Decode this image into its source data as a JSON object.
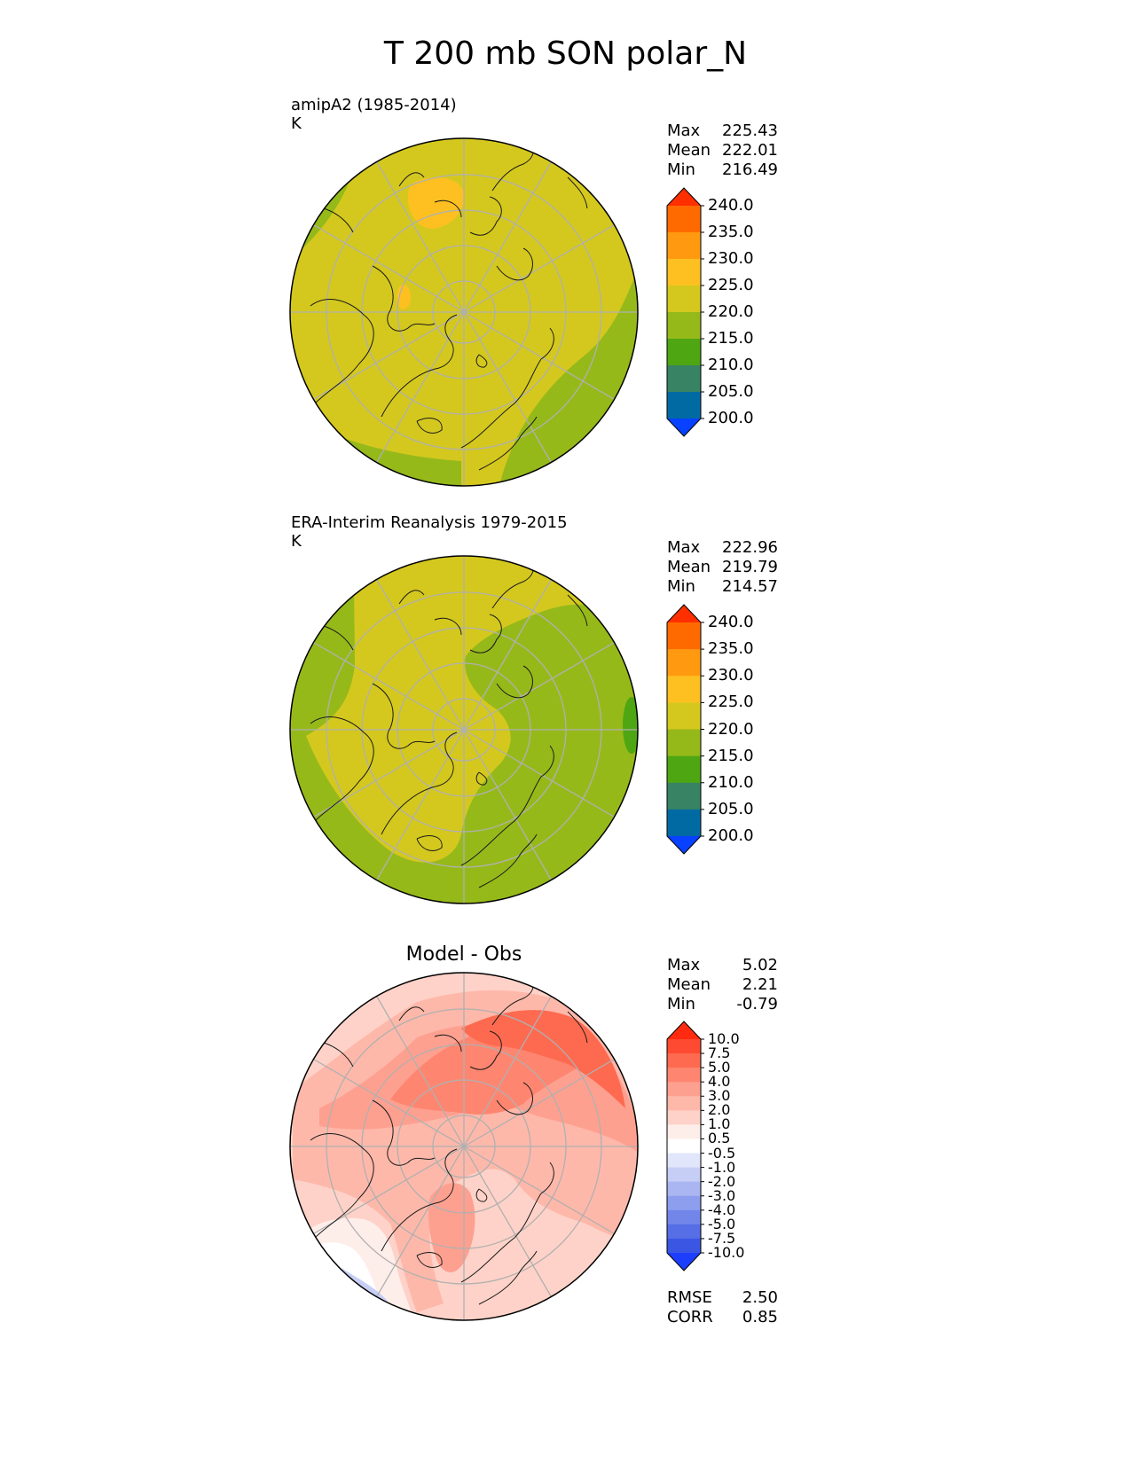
{
  "figure": {
    "title": "T 200 mb SON polar_N"
  },
  "panels": [
    {
      "label": "amipA2 (1985-2014)",
      "units": "K",
      "stats": [
        {
          "name": "Max",
          "value": "225.43"
        },
        {
          "name": "Mean",
          "value": "222.01"
        },
        {
          "name": "Min",
          "value": "216.49"
        }
      ]
    },
    {
      "label": "ERA-Interim Reanalysis 1979-2015",
      "units": "K",
      "stats": [
        {
          "name": "Max",
          "value": "222.96"
        },
        {
          "name": "Mean",
          "value": "219.79"
        },
        {
          "name": "Min",
          "value": "214.57"
        }
      ]
    },
    {
      "title": "Model - Obs",
      "stats": [
        {
          "name": "Max",
          "value": "5.02"
        },
        {
          "name": "Mean",
          "value": "2.21"
        },
        {
          "name": "Min",
          "value": "-0.79"
        }
      ],
      "metrics": [
        {
          "name": "RMSE",
          "value": "2.50"
        },
        {
          "name": "CORR",
          "value": "0.85"
        }
      ]
    }
  ],
  "chart_data": [
    {
      "type": "heatmap",
      "title": "amipA2 (1985-2014)",
      "units": "K",
      "projection": "north polar stereographic",
      "colorbar": {
        "ticks": [
          "240.0",
          "235.0",
          "230.0",
          "225.0",
          "220.0",
          "215.0",
          "210.0",
          "205.0",
          "200.0"
        ],
        "colors": [
          "#ff2f00",
          "#ff6a00",
          "#ff9a10",
          "#fdc020",
          "#d4c81e",
          "#96b91a",
          "#4ea612",
          "#378363",
          "#026aa3",
          "#0841ff"
        ],
        "extend": "both"
      },
      "stats": {
        "max": 225.43,
        "mean": 222.01,
        "min": 216.49
      }
    },
    {
      "type": "heatmap",
      "title": "ERA-Interim Reanalysis 1979-2015",
      "units": "K",
      "projection": "north polar stereographic",
      "colorbar": {
        "ticks": [
          "240.0",
          "235.0",
          "230.0",
          "225.0",
          "220.0",
          "215.0",
          "210.0",
          "205.0",
          "200.0"
        ],
        "colors": [
          "#ff2f00",
          "#ff6a00",
          "#ff9a10",
          "#fdc020",
          "#d4c81e",
          "#96b91a",
          "#4ea612",
          "#378363",
          "#026aa3",
          "#0841ff"
        ],
        "extend": "both"
      },
      "stats": {
        "max": 222.96,
        "mean": 219.79,
        "min": 214.57
      }
    },
    {
      "type": "heatmap",
      "title": "Model - Obs",
      "projection": "north polar stereographic",
      "colorbar": {
        "ticks": [
          "10.0",
          "7.5",
          "5.0",
          "4.0",
          "3.0",
          "2.0",
          "1.0",
          "0.5",
          "-0.5",
          "-1.0",
          "-2.0",
          "-3.0",
          "-4.0",
          "-5.0",
          "-7.5",
          "-10.0"
        ],
        "colors": [
          "#ff2a10",
          "#fe4a30",
          "#fe6a50",
          "#fe8670",
          "#fea090",
          "#feb8aa",
          "#fed2c8",
          "#feeeea",
          "#ffffff",
          "#e2e6fa",
          "#c6cef6",
          "#aab6f2",
          "#8e9eee",
          "#7286ea",
          "#566ee6",
          "#3a56e2",
          "#1e3eff"
        ],
        "extend": "both"
      },
      "stats": {
        "max": 5.02,
        "mean": 2.21,
        "min": -0.79
      },
      "rmse": 2.5,
      "corr": 0.85
    }
  ]
}
